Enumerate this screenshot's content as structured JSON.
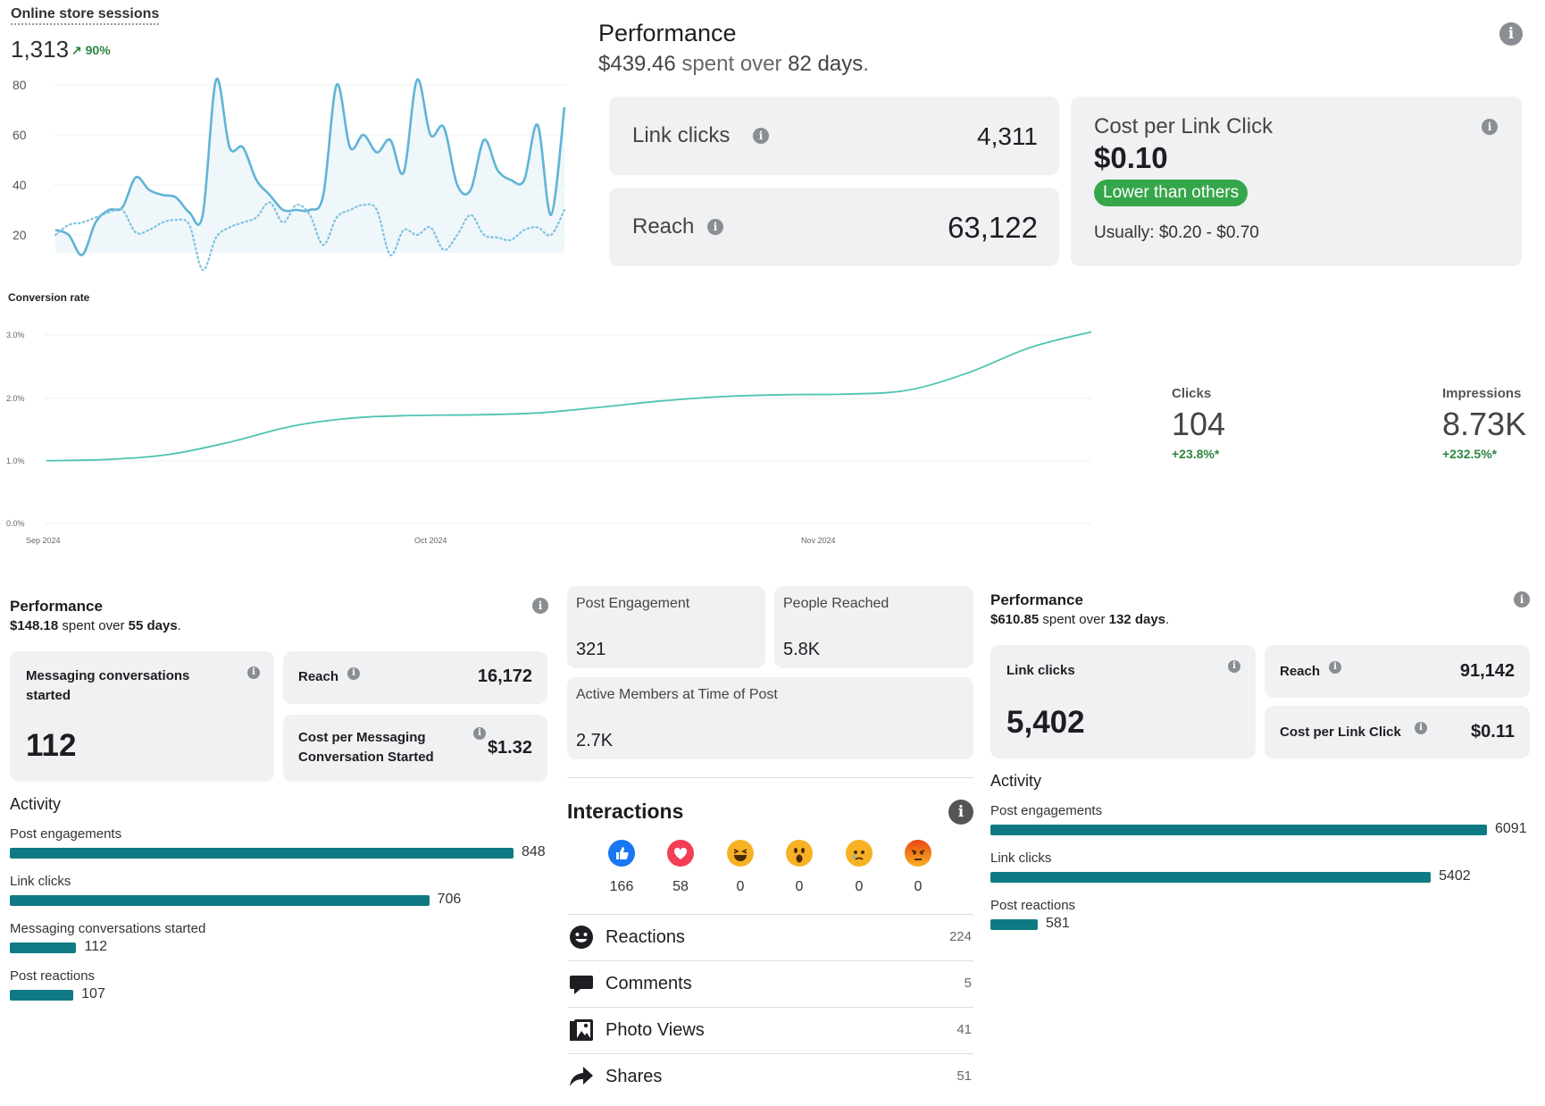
{
  "sessions": {
    "title": "Online store sessions",
    "value": "1,313",
    "change": "↗ 90%",
    "y_ticks": [
      "80",
      "60",
      "40",
      "20"
    ]
  },
  "conversion": {
    "title": "Conversion rate",
    "y_ticks": [
      "3.0%",
      "2.0%",
      "1.0%",
      "0.0%"
    ],
    "x_ticks": [
      "Sep 2024",
      "Oct 2024",
      "Nov 2024"
    ]
  },
  "chart_data": [
    {
      "type": "line",
      "title": "Online store sessions",
      "ylim": [
        0,
        80
      ],
      "y_ticks": [
        20,
        40,
        60,
        80
      ],
      "grid": true,
      "series": [
        {
          "values": [
            22,
            20,
            12,
            25,
            30,
            31,
            43,
            38,
            36,
            35,
            29,
            28,
            82,
            55,
            55,
            42,
            36,
            30,
            30,
            30,
            36,
            80,
            55,
            60,
            53,
            58,
            45,
            82,
            60,
            63,
            40,
            38,
            58,
            46,
            42,
            42,
            64,
            28,
            71
          ],
          "style": "solid",
          "color": "#5fb4d6"
        },
        {
          "values": [
            20,
            24,
            25,
            27,
            29,
            30,
            21,
            22,
            25,
            26,
            24,
            6,
            19,
            23,
            25,
            27,
            33,
            25,
            32,
            28,
            16,
            27,
            30,
            32,
            30,
            12,
            22,
            20,
            23,
            14,
            20,
            28,
            20,
            19,
            18,
            22,
            23,
            20,
            30
          ],
          "style": "dotted",
          "color": "#7cc2de"
        }
      ]
    },
    {
      "type": "line",
      "title": "Conversion rate",
      "ylim": [
        0,
        3.0
      ],
      "y_ticks": [
        0,
        1.0,
        2.0,
        3.0
      ],
      "x_ticks": [
        "Sep 2024",
        "Oct 2024",
        "Nov 2024"
      ],
      "series": [
        {
          "values": [
            1.0,
            1.02,
            1.1,
            1.3,
            1.55,
            1.68,
            1.72,
            1.73,
            1.76,
            1.85,
            1.95,
            2.02,
            2.05,
            2.06,
            2.12,
            2.4,
            2.8,
            3.05
          ],
          "color": "#4ec4b0"
        }
      ]
    }
  ],
  "stats": {
    "clicks_label": "Clicks",
    "clicks_value": "104",
    "clicks_change": "+23.8%*",
    "impressions_label": "Impressions",
    "impressions_value": "8.73K",
    "impressions_change": "+232.5%*"
  },
  "perf_top": {
    "title": "Performance",
    "spent": "$439.46",
    "spent_mid": " spent over ",
    "days": "82 days",
    "dot": ".",
    "link_clicks_label": "Link clicks",
    "link_clicks_value": "4,311",
    "reach_label": "Reach",
    "reach_value": "63,122",
    "cpc_label": "Cost per Link Click",
    "cpc_value": "$0.10",
    "badge": "Lower than others",
    "usually": "Usually: $0.20 - $0.70"
  },
  "perf_left": {
    "title": "Performance",
    "spent": "$148.18",
    "spent_mid": " spent over ",
    "days": "55 days",
    "dot": ".",
    "msg_label": "Messaging conversations started",
    "msg_value": "112",
    "reach_label": "Reach",
    "reach_value": "16,172",
    "cpm_label": "Cost per Messaging Conversation Started",
    "cpm_value": "$1.32",
    "activity_title": "Activity",
    "bars": [
      {
        "label": "Post engagements",
        "value": "848",
        "n": 848
      },
      {
        "label": "Link clicks",
        "value": "706",
        "n": 706
      },
      {
        "label": "Messaging conversations started",
        "value": "112",
        "n": 112
      },
      {
        "label": "Post reactions",
        "value": "107",
        "n": 107
      }
    ]
  },
  "middle": {
    "post_engagement_label": "Post Engagement",
    "post_engagement_value": "321",
    "people_reached_label": "People Reached",
    "people_reached_value": "5.8K",
    "active_members_label": "Active Members at Time of Post",
    "active_members_value": "2.7K",
    "interactions_title": "Interactions",
    "reactions": [
      {
        "icon": "like-icon",
        "count": "166",
        "color": "#1877f2"
      },
      {
        "icon": "love-icon",
        "count": "58",
        "color": "#f33e58"
      },
      {
        "icon": "haha-icon",
        "count": "0",
        "color": "#f7b125"
      },
      {
        "icon": "wow-icon",
        "count": "0",
        "color": "#f7b125"
      },
      {
        "icon": "sad-icon",
        "count": "0",
        "color": "#f7b125"
      },
      {
        "icon": "angry-icon",
        "count": "0",
        "color": "#e9710f"
      }
    ],
    "rows": [
      {
        "icon": "smile-icon",
        "label": "Reactions",
        "value": "224"
      },
      {
        "icon": "comment-icon",
        "label": "Comments",
        "value": "5"
      },
      {
        "icon": "photo-icon",
        "label": "Photo Views",
        "value": "41"
      },
      {
        "icon": "share-icon",
        "label": "Shares",
        "value": "51"
      }
    ]
  },
  "perf_right": {
    "title": "Performance",
    "spent": "$610.85",
    "spent_mid": " spent over ",
    "days": "132 days",
    "dot": ".",
    "link_clicks_label": "Link clicks",
    "link_clicks_value": "5,402",
    "reach_label": "Reach",
    "reach_value": "91,142",
    "cpc_label": "Cost per Link Click",
    "cpc_value": "$0.11",
    "activity_title": "Activity",
    "bars": [
      {
        "label": "Post engagements",
        "value": "6091",
        "n": 6091
      },
      {
        "label": "Link clicks",
        "value": "5402",
        "n": 5402
      },
      {
        "label": "Post reactions",
        "value": "581",
        "n": 581
      }
    ]
  },
  "colors": {
    "bar": "#0f7a83",
    "green": "#2e8540",
    "badge": "#35a64a",
    "card": "#f0f1f2"
  }
}
